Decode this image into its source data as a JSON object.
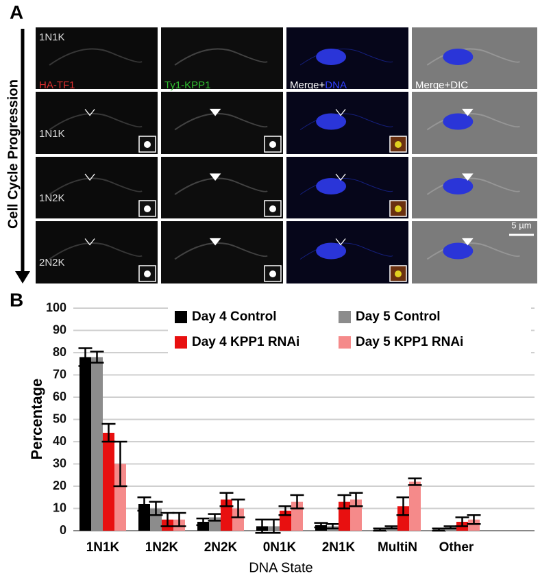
{
  "panel_a": {
    "label": "A",
    "side_label": "Cell Cycle Progression",
    "column_labels": [
      "HA-TF1",
      "Ty1-KPP1",
      "Merge+",
      "DNA",
      "Merge+DIC"
    ],
    "row_labels": [
      "1N1K",
      "1N1K",
      "1N2K",
      "2N2K"
    ],
    "scale_bar": "5 µm"
  },
  "chart_data": {
    "type": "bar",
    "panel_label": "B",
    "x_label": "DNA State",
    "y_label": "Percentage",
    "categories": [
      "1N1K",
      "1N2K",
      "2N2K",
      "0N1K",
      "2N1K",
      "MultiN",
      "Other"
    ],
    "series": [
      {
        "name": "Day 4 Control",
        "color": "#000000",
        "values": [
          78,
          12,
          4,
          2,
          2.5,
          0.5,
          0.5
        ],
        "errors": [
          4,
          3,
          1.5,
          3,
          1,
          0.5,
          0.5
        ]
      },
      {
        "name": "Day 5 Control",
        "color": "#8c8c8c",
        "values": [
          78,
          10,
          6,
          2,
          2,
          1.5,
          1.5
        ],
        "errors": [
          2.5,
          3,
          1.5,
          3,
          1,
          0.5,
          0.5
        ]
      },
      {
        "name": "Day 4 KPP1 RNAi",
        "color": "#e81010",
        "values": [
          44,
          5,
          14,
          9,
          13,
          11,
          4
        ],
        "errors": [
          4,
          3,
          3,
          2,
          3,
          4,
          2
        ]
      },
      {
        "name": "Day 5 KPP1 RNAi",
        "color": "#f58a8a",
        "values": [
          30,
          5,
          10,
          13,
          14,
          22,
          5
        ],
        "errors": [
          10,
          3,
          4,
          3,
          3,
          1.5,
          2
        ]
      }
    ],
    "ylim": [
      0,
      100
    ],
    "yticks": [
      0,
      10,
      20,
      30,
      40,
      50,
      60,
      70,
      80,
      90,
      100
    ],
    "grid": true,
    "legend": "top"
  }
}
